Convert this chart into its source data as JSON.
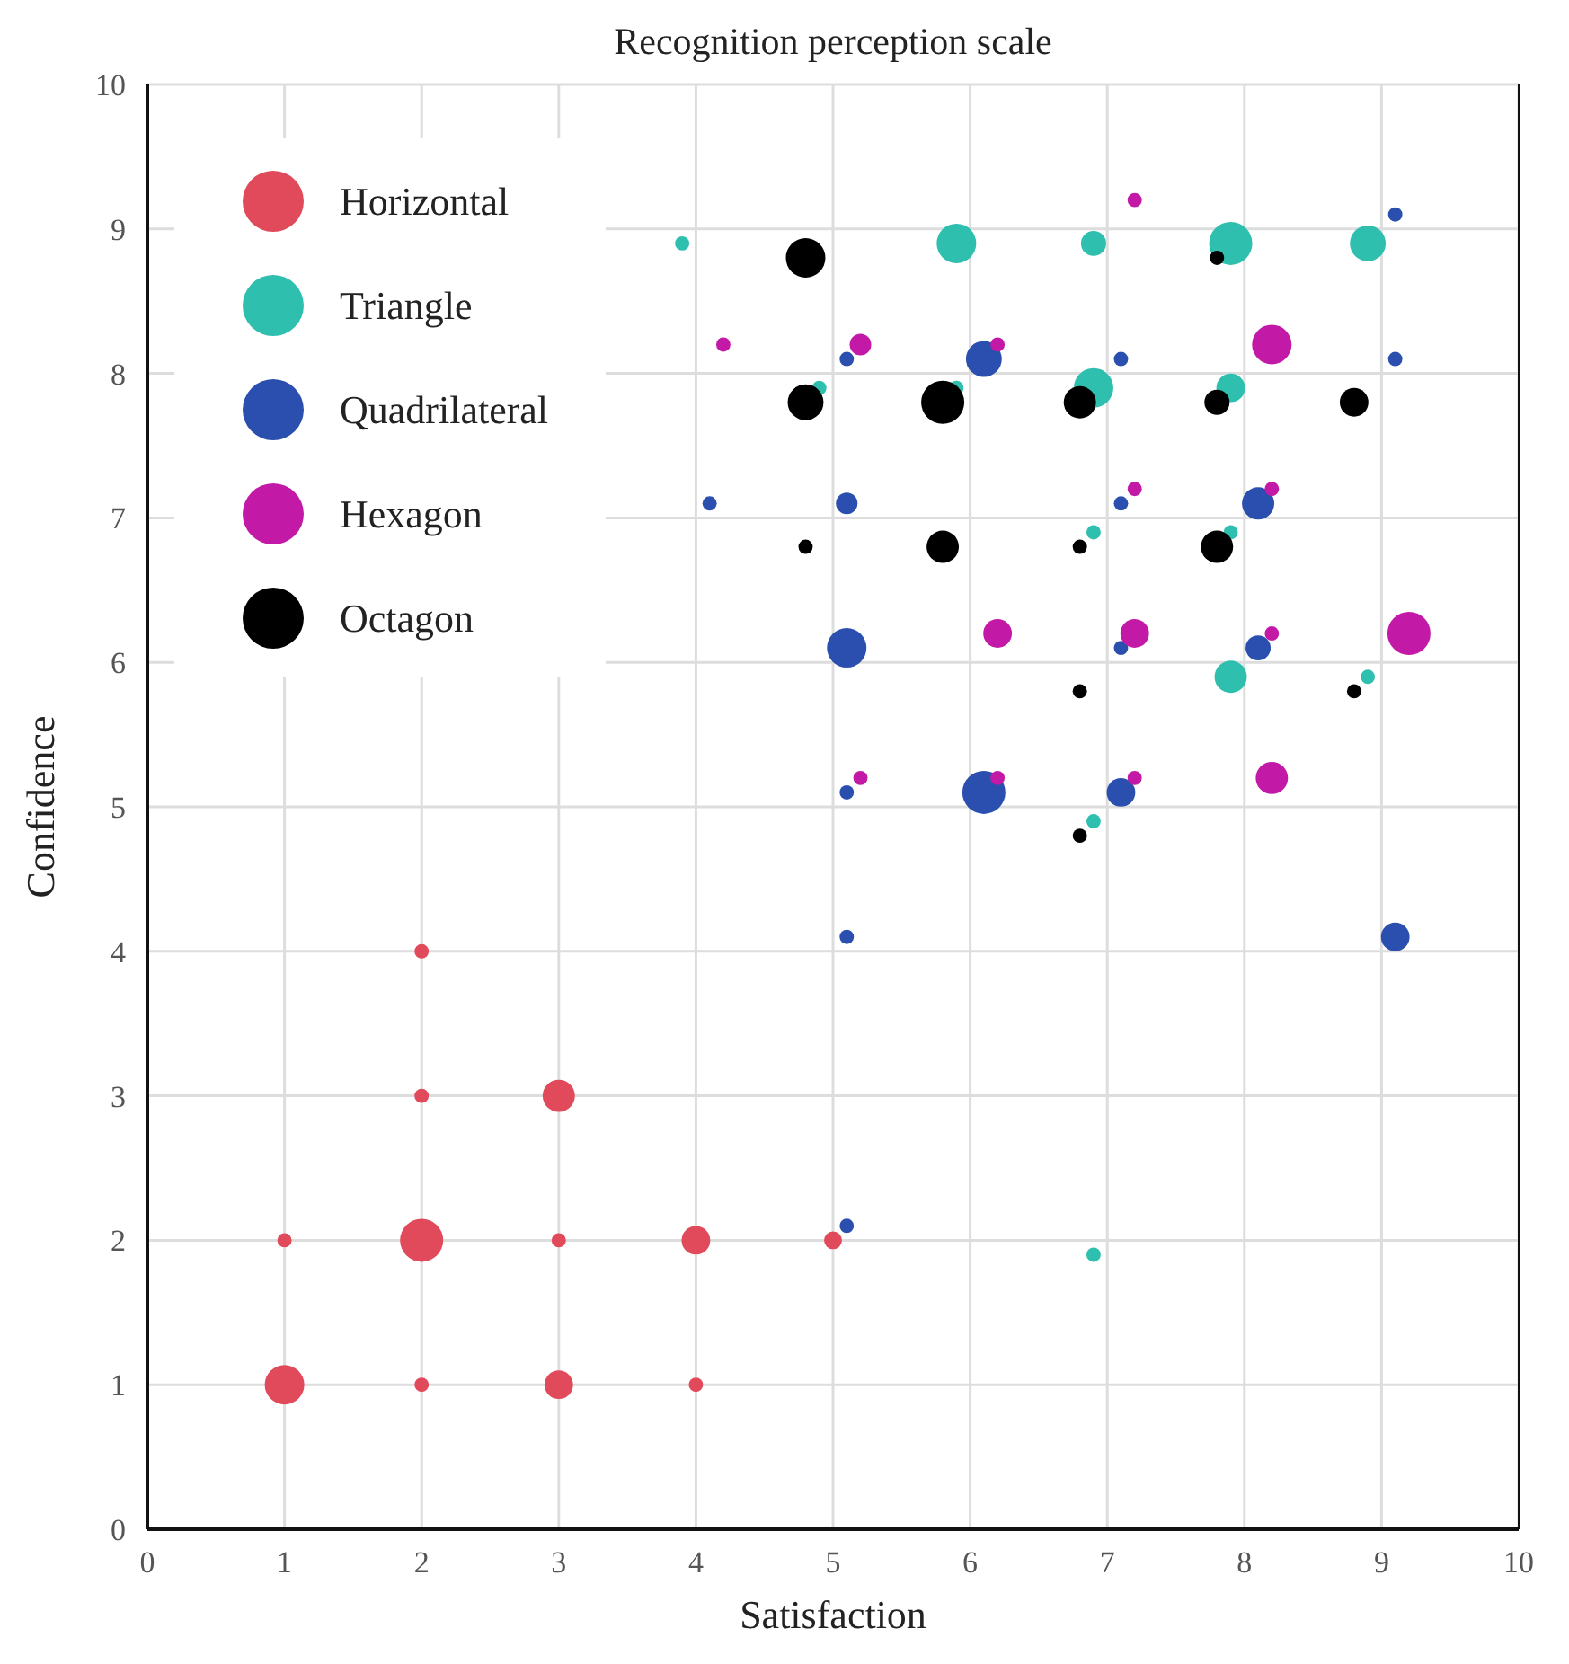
{
  "chart_data": {
    "type": "bubble",
    "title": "Recognition perception scale",
    "xlabel": "Satisfaction",
    "ylabel": "Confidence",
    "xlim": [
      0,
      10
    ],
    "ylim": [
      0,
      10
    ],
    "xticks": [
      0,
      1,
      2,
      3,
      4,
      5,
      6,
      7,
      8,
      9,
      10
    ],
    "yticks": [
      0,
      1,
      2,
      3,
      4,
      5,
      6,
      7,
      8,
      9,
      10
    ],
    "grid": true,
    "legend": "top left",
    "series": [
      {
        "name": "Horizontal",
        "color": "#e04a5a",
        "x": [
          1,
          2,
          3,
          4,
          1,
          2,
          3,
          4,
          5,
          2,
          3,
          2
        ],
        "values": [
          1,
          1,
          1,
          1,
          2,
          2,
          2,
          2,
          2,
          3,
          3,
          4
        ],
        "sizes": [
          0.84,
          0.11,
          0.44,
          0.11,
          0.11,
          1,
          0.11,
          0.44,
          0.17,
          0.11,
          0.56,
          0.11
        ]
      },
      {
        "name": "Triangle",
        "color": "#2ebfae",
        "x": [
          3.9,
          5.9,
          6.9,
          7.9,
          8.9,
          4.9,
          5.9,
          6.9,
          7.9,
          6.9,
          7.9,
          7.9,
          8.9,
          6.9,
          6.9
        ],
        "values": [
          8.9,
          8.9,
          8.9,
          8.9,
          8.9,
          7.9,
          7.9,
          7.9,
          7.9,
          6.9,
          6.9,
          5.9,
          5.9,
          4.9,
          1.9
        ],
        "sizes": [
          0.11,
          0.84,
          0.34,
          1,
          0.69,
          0.11,
          0.11,
          0.84,
          0.44,
          0.11,
          0.11,
          0.56,
          0.11,
          0.11,
          0.11
        ]
      },
      {
        "name": "Quadrilateral",
        "color": "#2a4fae",
        "x": [
          9.1,
          5.1,
          6.1,
          7.1,
          9.1,
          4.1,
          5.1,
          7.1,
          8.1,
          5.1,
          7.1,
          8.1,
          5.1,
          6.1,
          7.1,
          5.1,
          9.1,
          5.1
        ],
        "values": [
          9.1,
          8.1,
          8.1,
          8.1,
          8.1,
          7.1,
          7.1,
          7.1,
          7.1,
          6.1,
          6.1,
          6.1,
          5.1,
          5.1,
          5.1,
          4.1,
          4.1,
          2.1
        ],
        "sizes": [
          0.11,
          0.11,
          0.69,
          0.11,
          0.11,
          0.11,
          0.25,
          0.11,
          0.56,
          0.84,
          0.11,
          0.34,
          0.11,
          1,
          0.44,
          0.11,
          0.44,
          0.11
        ]
      },
      {
        "name": "Hexagon",
        "color": "#c21aa6",
        "x": [
          7.2,
          4.2,
          5.2,
          6.2,
          8.2,
          7.2,
          8.2,
          6.2,
          7.2,
          8.2,
          9.2,
          5.2,
          6.2,
          7.2,
          8.2
        ],
        "values": [
          9.2,
          8.2,
          8.2,
          8.2,
          8.2,
          7.2,
          7.2,
          6.2,
          6.2,
          6.2,
          6.2,
          5.2,
          5.2,
          5.2,
          5.2
        ],
        "sizes": [
          0.11,
          0.11,
          0.25,
          0.11,
          0.84,
          0.11,
          0.11,
          0.44,
          0.44,
          0.11,
          1,
          0.11,
          0.11,
          0.11,
          0.56
        ]
      },
      {
        "name": "Octagon",
        "color": "#000000",
        "x": [
          4.8,
          7.8,
          4.8,
          5.8,
          6.8,
          7.8,
          8.8,
          4.8,
          5.8,
          6.8,
          7.8,
          6.8,
          8.8,
          6.8
        ],
        "values": [
          8.8,
          8.8,
          7.8,
          7.8,
          7.8,
          7.8,
          7.8,
          6.8,
          6.8,
          6.8,
          6.8,
          5.8,
          5.8,
          4.8
        ],
        "sizes": [
          0.84,
          0.11,
          0.69,
          1,
          0.56,
          0.34,
          0.44,
          0.11,
          0.56,
          0.11,
          0.56,
          0.11,
          0.11,
          0.11
        ]
      }
    ]
  }
}
